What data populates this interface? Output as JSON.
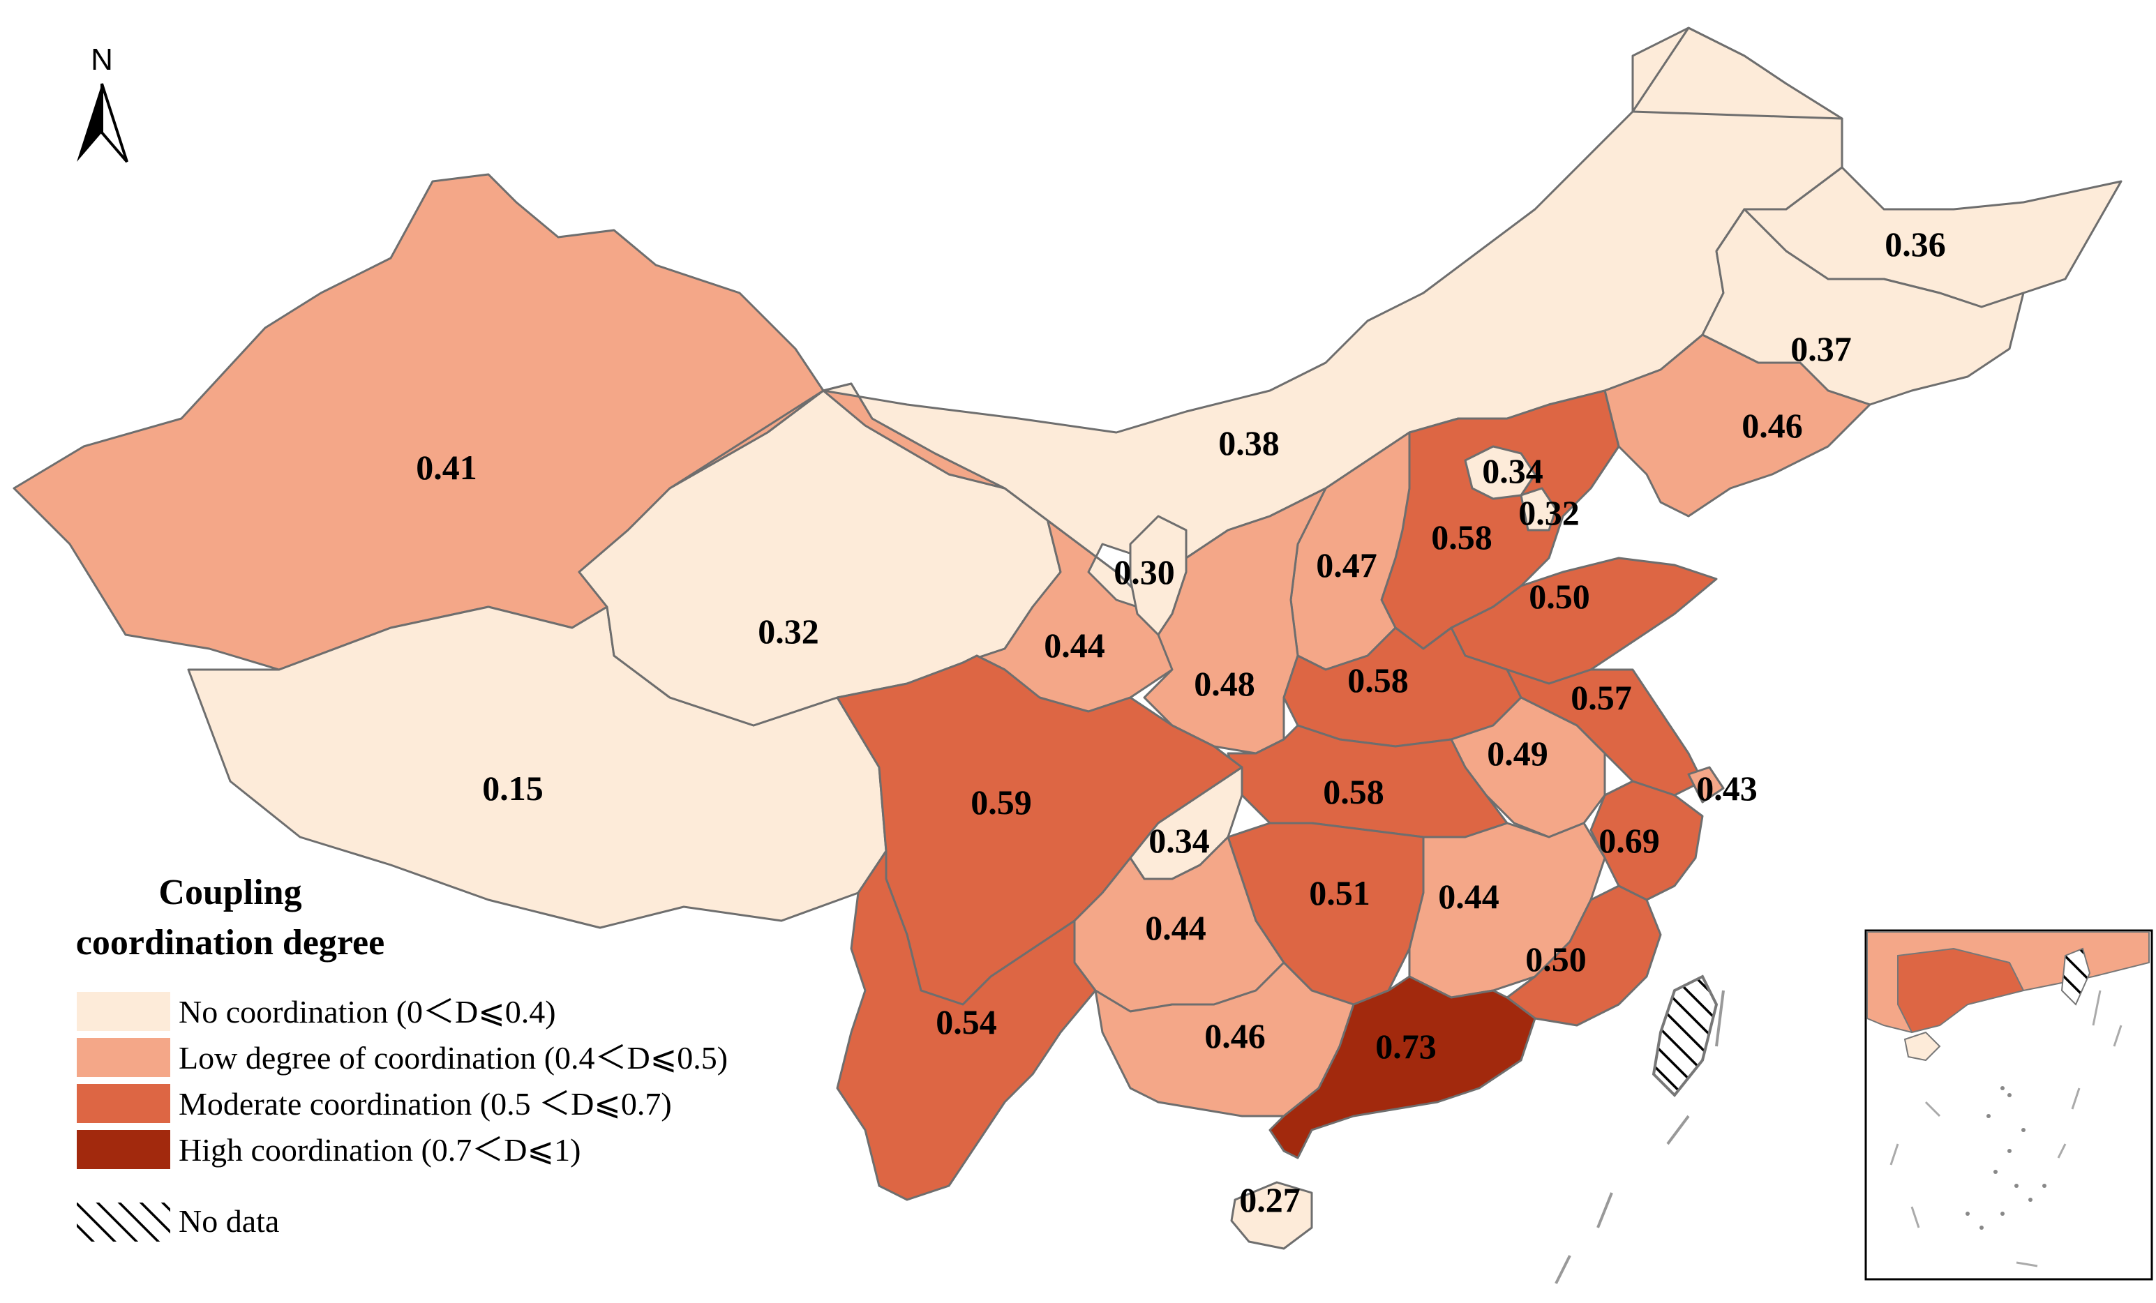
{
  "north_label": "N",
  "legend": {
    "title_line1": "Coupling",
    "title_line2": "coordination degree",
    "classes": [
      {
        "label": "No coordination (0＜D⩽0.4)",
        "color": "#fdebd9"
      },
      {
        "label": "Low degree of coordination (0.4＜D⩽0.5)",
        "color": "#f4a788"
      },
      {
        "label": "Moderate coordination (0.5 ＜D⩽0.7)",
        "color": "#dd6644"
      },
      {
        "label": "High coordination (0.7＜D⩽1)",
        "color": "#a2290d"
      }
    ],
    "no_data_label": "No data"
  },
  "regions": [
    {
      "id": "xinjiang",
      "value": "0.41",
      "class": 1
    },
    {
      "id": "tibet",
      "value": "0.15",
      "class": 0
    },
    {
      "id": "qinghai",
      "value": "0.32",
      "class": 0
    },
    {
      "id": "gansu",
      "value": "0.44",
      "class": 1
    },
    {
      "id": "inner-mongolia",
      "value": "0.38",
      "class": 0
    },
    {
      "id": "ningxia",
      "value": "0.30",
      "class": 0
    },
    {
      "id": "shaanxi",
      "value": "0.48",
      "class": 1
    },
    {
      "id": "shanxi",
      "value": "0.47",
      "class": 1
    },
    {
      "id": "hebei",
      "value": "0.58",
      "class": 2
    },
    {
      "id": "beijing",
      "value": "0.34",
      "class": 0
    },
    {
      "id": "tianjin",
      "value": "0.32",
      "class": 0
    },
    {
      "id": "heilongjiang",
      "value": "0.36",
      "class": 0
    },
    {
      "id": "jilin",
      "value": "0.37",
      "class": 0
    },
    {
      "id": "liaoning",
      "value": "0.46",
      "class": 1
    },
    {
      "id": "shandong",
      "value": "0.50",
      "class": 2
    },
    {
      "id": "henan",
      "value": "0.58",
      "class": 2
    },
    {
      "id": "jiangsu",
      "value": "0.57",
      "class": 2
    },
    {
      "id": "anhui",
      "value": "0.49",
      "class": 1
    },
    {
      "id": "shanghai",
      "value": "0.43",
      "class": 1
    },
    {
      "id": "hubei",
      "value": "0.58",
      "class": 2
    },
    {
      "id": "sichuan",
      "value": "0.59",
      "class": 2
    },
    {
      "id": "chongqing",
      "value": "0.34",
      "class": 0
    },
    {
      "id": "zhejiang",
      "value": "0.69",
      "class": 2
    },
    {
      "id": "hunan",
      "value": "0.51",
      "class": 2
    },
    {
      "id": "jiangxi",
      "value": "0.44",
      "class": 1
    },
    {
      "id": "fujian",
      "value": "0.50",
      "class": 2
    },
    {
      "id": "guizhou",
      "value": "0.44",
      "class": 1
    },
    {
      "id": "yunnan",
      "value": "0.54",
      "class": 2
    },
    {
      "id": "guangxi",
      "value": "0.46",
      "class": 1
    },
    {
      "id": "guangdong",
      "value": "0.73",
      "class": 3
    },
    {
      "id": "hainan",
      "value": "0.27",
      "class": 0
    }
  ]
}
